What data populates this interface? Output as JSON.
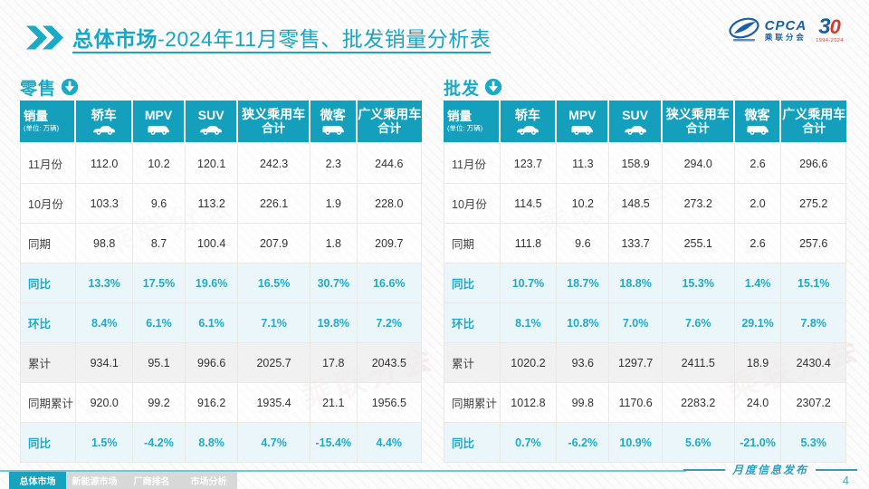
{
  "slide": {
    "title_bold": "总体市场",
    "title_rest": "-2024年11月零售、批发销量分析表",
    "publish_label": "月度信息发布",
    "page_number": "4",
    "watermark_text": "乘联分会"
  },
  "logos": {
    "cpca_text": "CPCA",
    "cpca_sub": "乘联分会",
    "anniversary_left": "3",
    "anniversary_right": "0",
    "anniversary_years": "1994-2024"
  },
  "colors": {
    "accent": "#14a0bc",
    "title_cyan": "#17a6c4",
    "highlight_bg": "#e8f5f9",
    "highlight_text": "#25a7c7"
  },
  "table_template": {
    "corner_label": "销量",
    "corner_unit": "(单位: 万辆)",
    "columns": [
      {
        "label": "轿车",
        "icon": "sedan-icon",
        "shape": "car"
      },
      {
        "label": "MPV",
        "icon": "mpv-icon",
        "shape": "van"
      },
      {
        "label": "SUV",
        "icon": "suv-icon",
        "shape": "car"
      },
      {
        "label": "狭义乘用车",
        "label2": "合计"
      },
      {
        "label": "微客",
        "icon": "minibus-icon",
        "shape": "van"
      },
      {
        "label": "广义乘用车",
        "label2": "合计"
      }
    ]
  },
  "tables": [
    {
      "name": "零售",
      "rows": [
        {
          "label": "11月份",
          "style": "plain",
          "values": [
            "112.0",
            "10.2",
            "120.1",
            "242.3",
            "2.3",
            "244.6"
          ]
        },
        {
          "label": "10月份",
          "style": "plain",
          "values": [
            "103.3",
            "9.6",
            "113.2",
            "226.1",
            "1.9",
            "228.0"
          ]
        },
        {
          "label": "同期",
          "style": "plain",
          "values": [
            "98.8",
            "8.7",
            "100.4",
            "207.9",
            "1.8",
            "209.7"
          ]
        },
        {
          "label": "同比",
          "style": "highlight",
          "values": [
            "13.3%",
            "17.5%",
            "19.6%",
            "16.5%",
            "30.7%",
            "16.6%"
          ]
        },
        {
          "label": "环比",
          "style": "highlight",
          "values": [
            "8.4%",
            "6.1%",
            "6.1%",
            "7.1%",
            "19.8%",
            "7.2%"
          ]
        },
        {
          "label": "累计",
          "style": "gray",
          "values": [
            "934.1",
            "95.1",
            "996.6",
            "2025.7",
            "17.8",
            "2043.5"
          ]
        },
        {
          "label": "同期累计",
          "style": "plain",
          "values": [
            "920.0",
            "99.2",
            "916.2",
            "1935.4",
            "21.1",
            "1956.5"
          ]
        },
        {
          "label": "同比",
          "style": "highlight",
          "values": [
            "1.5%",
            "-4.2%",
            "8.8%",
            "4.7%",
            "-15.4%",
            "4.4%"
          ]
        }
      ]
    },
    {
      "name": "批发",
      "rows": [
        {
          "label": "11月份",
          "style": "plain",
          "values": [
            "123.7",
            "11.3",
            "158.9",
            "294.0",
            "2.6",
            "296.6"
          ]
        },
        {
          "label": "10月份",
          "style": "plain",
          "values": [
            "114.5",
            "10.2",
            "148.5",
            "273.2",
            "2.0",
            "275.2"
          ]
        },
        {
          "label": "同期",
          "style": "plain",
          "values": [
            "111.8",
            "9.6",
            "133.7",
            "255.1",
            "2.6",
            "257.6"
          ]
        },
        {
          "label": "同比",
          "style": "highlight",
          "values": [
            "10.7%",
            "18.7%",
            "18.8%",
            "15.3%",
            "1.4%",
            "15.1%"
          ]
        },
        {
          "label": "环比",
          "style": "highlight",
          "values": [
            "8.1%",
            "10.8%",
            "7.0%",
            "7.6%",
            "29.1%",
            "7.8%"
          ]
        },
        {
          "label": "累计",
          "style": "gray",
          "values": [
            "1020.2",
            "93.6",
            "1297.7",
            "2411.5",
            "18.9",
            "2430.4"
          ]
        },
        {
          "label": "同期累计",
          "style": "plain",
          "values": [
            "1012.8",
            "99.8",
            "1170.6",
            "2283.2",
            "24.0",
            "2307.2"
          ]
        },
        {
          "label": "同比",
          "style": "highlight",
          "values": [
            "0.7%",
            "-6.2%",
            "10.9%",
            "5.6%",
            "-21.0%",
            "5.3%"
          ]
        }
      ]
    }
  ],
  "footer": {
    "tabs": [
      {
        "label": "总体市场",
        "active": true
      },
      {
        "label": "新能源市场",
        "active": false
      },
      {
        "label": "厂商排名",
        "active": false
      },
      {
        "label": "市场分析",
        "active": false
      }
    ]
  }
}
